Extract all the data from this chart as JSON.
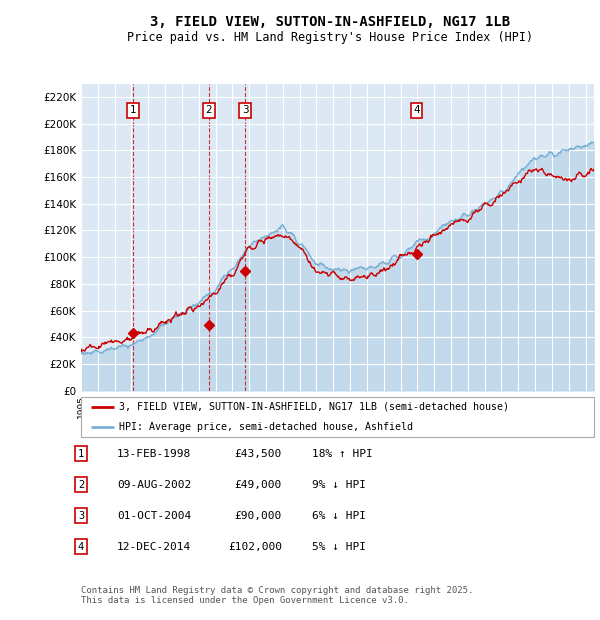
{
  "title": "3, FIELD VIEW, SUTTON-IN-ASHFIELD, NG17 1LB",
  "subtitle": "Price paid vs. HM Land Registry's House Price Index (HPI)",
  "background_color": "#dce9f5",
  "plot_bg_color": "#dce9f5",
  "hpi_color": "#7aafd4",
  "price_color": "#cc0000",
  "ylim": [
    0,
    230000
  ],
  "yticks": [
    0,
    20000,
    40000,
    60000,
    80000,
    100000,
    120000,
    140000,
    160000,
    180000,
    200000,
    220000
  ],
  "transactions": [
    {
      "label": "1",
      "date": "13-FEB-1998",
      "price": 43500,
      "hpi_relation": "18% ↑ HPI",
      "x_year": 1998.11
    },
    {
      "label": "2",
      "date": "09-AUG-2002",
      "price": 49000,
      "hpi_relation": "9% ↓ HPI",
      "x_year": 2002.61
    },
    {
      "label": "3",
      "date": "01-OCT-2004",
      "price": 90000,
      "hpi_relation": "6% ↓ HPI",
      "x_year": 2004.75
    },
    {
      "label": "4",
      "date": "12-DEC-2014",
      "price": 102000,
      "hpi_relation": "5% ↓ HPI",
      "x_year": 2014.95
    }
  ],
  "legend_line1": "3, FIELD VIEW, SUTTON-IN-ASHFIELD, NG17 1LB (semi-detached house)",
  "legend_line2": "HPI: Average price, semi-detached house, Ashfield",
  "footer": "Contains HM Land Registry data © Crown copyright and database right 2025.\nThis data is licensed under the Open Government Licence v3.0.",
  "xmin": 1995,
  "xmax": 2025.5
}
